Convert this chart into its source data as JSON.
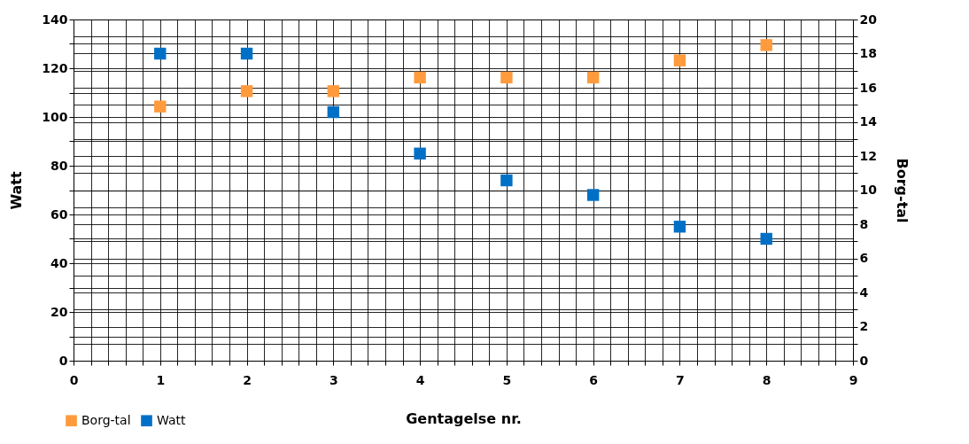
{
  "chart_data": {
    "type": "scatter",
    "xlabel": "Gentagelse nr.",
    "ylabel": "Watt",
    "y2label": "Borg-tal",
    "x": [
      1,
      2,
      3,
      4,
      5,
      6,
      7,
      8
    ],
    "series": [
      {
        "name": "Borg-tal",
        "color": "#ff9b3d",
        "axis": "y2",
        "values": [
          14.9,
          15.8,
          15.8,
          16.6,
          16.6,
          16.6,
          17.6,
          18.5
        ]
      },
      {
        "name": "Watt",
        "color": "#0070c6",
        "values": [
          126,
          126,
          102,
          85,
          74,
          68,
          55,
          50
        ]
      }
    ],
    "xlim": [
      0,
      9
    ],
    "xticks": [
      0,
      {
        "value": 0.2,
        "label": null
      },
      {
        "value": 0.4,
        "label": null
      },
      {
        "value": 0.6,
        "label": null
      },
      {
        "value": 0.8,
        "label": null
      },
      1,
      {
        "value": 1.2,
        "label": null
      },
      {
        "value": 1.4,
        "label": null
      },
      {
        "value": 1.6,
        "label": null
      },
      {
        "value": 1.8,
        "label": null
      },
      2,
      {
        "value": 2.2,
        "label": null
      },
      {
        "value": 2.4,
        "label": null
      },
      {
        "value": 2.6,
        "label": null
      },
      {
        "value": 2.8,
        "label": null
      },
      3,
      {
        "value": 3.2,
        "label": null
      },
      {
        "value": 3.4,
        "label": null
      },
      {
        "value": 3.6,
        "label": null
      },
      {
        "value": 3.8,
        "label": null
      },
      4,
      {
        "value": 4.2,
        "label": null
      },
      {
        "value": 4.4,
        "label": null
      },
      {
        "value": 4.6,
        "label": null
      },
      {
        "value": 4.8,
        "label": null
      },
      5,
      {
        "value": 5.2,
        "label": null
      },
      {
        "value": 5.4,
        "label": null
      },
      {
        "value": 5.6,
        "label": null
      },
      {
        "value": 5.8,
        "label": null
      },
      6,
      {
        "value": 6.2,
        "label": null
      },
      {
        "value": 6.4,
        "label": null
      },
      {
        "value": 6.6,
        "label": null
      },
      {
        "value": 6.8,
        "label": null
      },
      7,
      {
        "value": 7.2,
        "label": null
      },
      {
        "value": 7.4,
        "label": null
      },
      {
        "value": 7.6,
        "label": null
      },
      {
        "value": 7.8,
        "label": null
      },
      8,
      {
        "value": 8.2,
        "label": null
      },
      {
        "value": 8.4,
        "label": null
      },
      {
        "value": 8.6,
        "label": null
      },
      {
        "value": 8.8,
        "label": null
      },
      9
    ],
    "ylim": [
      0,
      140
    ],
    "yticks": [
      0,
      {
        "value": 10,
        "label": null
      },
      20,
      {
        "value": 30,
        "label": null
      },
      40,
      {
        "value": 50,
        "label": null
      },
      60,
      {
        "value": 70,
        "label": null
      },
      80,
      {
        "value": 90,
        "label": null
      },
      100,
      {
        "value": 110,
        "label": null
      },
      120,
      {
        "value": 130,
        "label": null
      },
      140
    ],
    "y2lim": [
      0,
      20
    ],
    "y2ticks": [
      0,
      {
        "value": 1,
        "label": null
      },
      2,
      {
        "value": 3,
        "label": null
      },
      4,
      {
        "value": 5,
        "label": null
      },
      6,
      {
        "value": 7,
        "label": null
      },
      8,
      {
        "value": 9,
        "label": null
      },
      10,
      {
        "value": 11,
        "label": null
      },
      12,
      {
        "value": 13,
        "label": null
      },
      14,
      {
        "value": 15,
        "label": null
      },
      16,
      {
        "value": 17,
        "label": null
      },
      18,
      {
        "value": 19,
        "label": null
      },
      20
    ],
    "grid": true,
    "legend": "bottom left",
    "marker": "square"
  }
}
